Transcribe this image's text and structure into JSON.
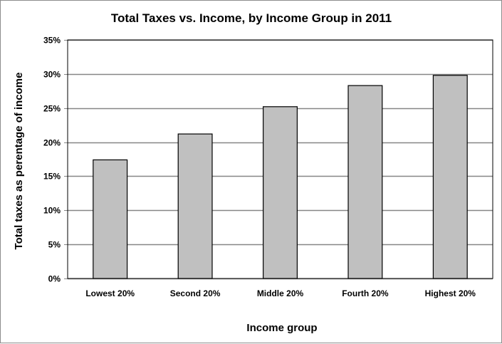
{
  "chart_data": {
    "type": "bar",
    "title": "Total Taxes vs. Income, by Income Group in 2011",
    "xlabel": "Income group",
    "ylabel": "Total taxes as perentage of income",
    "categories": [
      "Lowest 20%",
      "Second 20%",
      "Middle 20%",
      "Fourth 20%",
      "Highest 20%"
    ],
    "values": [
      17.4,
      21.2,
      25.2,
      28.3,
      29.8
    ],
    "ylim": [
      0,
      35
    ],
    "yticks": [
      0,
      5,
      10,
      15,
      20,
      25,
      30,
      35
    ],
    "ytick_labels": [
      "0%",
      "5%",
      "10%",
      "15%",
      "20%",
      "25%",
      "30%",
      "35%"
    ],
    "grid": true,
    "legend": "none",
    "colors": {
      "bar": "#c0c0c0",
      "bar_border": "#000000",
      "grid": "#868686"
    }
  }
}
